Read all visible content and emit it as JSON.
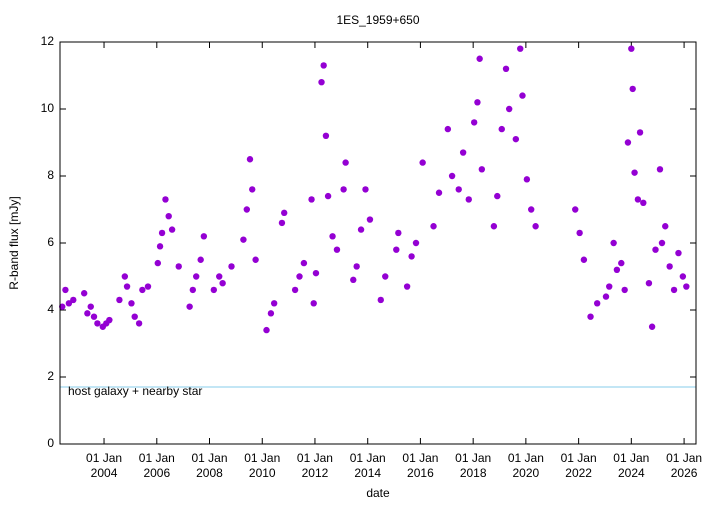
{
  "chart_data": {
    "type": "scatter",
    "title": "1ES_1959+650",
    "xlabel": "date",
    "ylabel": "R-band flux [mJy]",
    "xlim": [
      "2002-05-01",
      "2026-06-15"
    ],
    "ylim": [
      0,
      12
    ],
    "yticks": [
      0,
      2,
      4,
      6,
      8,
      10,
      12
    ],
    "xticks": [
      {
        "value": "2004-01-01",
        "label": [
          "01 Jan",
          "2004"
        ]
      },
      {
        "value": "2006-01-01",
        "label": [
          "01 Jan",
          "2006"
        ]
      },
      {
        "value": "2008-01-01",
        "label": [
          "01 Jan",
          "2008"
        ]
      },
      {
        "value": "2010-01-01",
        "label": [
          "01 Jan",
          "2010"
        ]
      },
      {
        "value": "2012-01-01",
        "label": [
          "01 Jan",
          "2012"
        ]
      },
      {
        "value": "2014-01-01",
        "label": [
          "01 Jan",
          "2014"
        ]
      },
      {
        "value": "2016-01-01",
        "label": [
          "01 Jan",
          "2016"
        ]
      },
      {
        "value": "2018-01-01",
        "label": [
          "01 Jan",
          "2018"
        ]
      },
      {
        "value": "2020-01-01",
        "label": [
          "01 Jan",
          "2020"
        ]
      },
      {
        "value": "2022-01-01",
        "label": [
          "01 Jan",
          "2022"
        ]
      },
      {
        "value": "2024-01-01",
        "label": [
          "01 Jan",
          "2024"
        ]
      },
      {
        "value": "2026-01-01",
        "label": [
          "01 Jan",
          "2026"
        ]
      }
    ],
    "reference_line": {
      "label": "host galaxy + nearby star",
      "value": 1.7,
      "color": "#87ceeb"
    },
    "series": [
      {
        "color": "#9400d3",
        "x": [
          "2002-06-01",
          "2002-07-15",
          "2002-09-01",
          "2002-11-01",
          "2003-04-01",
          "2003-05-15",
          "2003-07-01",
          "2003-08-15",
          "2003-10-01",
          "2003-12-15",
          "2004-02-01",
          "2004-03-15",
          "2004-08-01",
          "2004-10-15",
          "2004-11-15",
          "2005-01-15",
          "2005-03-01",
          "2005-05-01",
          "2005-06-15",
          "2005-09-01",
          "2006-01-15",
          "2006-02-15",
          "2006-03-15",
          "2006-05-01",
          "2006-06-15",
          "2006-08-01",
          "2006-11-01",
          "2007-04-01",
          "2007-05-15",
          "2007-07-01",
          "2007-09-01",
          "2007-10-15",
          "2008-03-01",
          "2008-05-15",
          "2008-07-01",
          "2008-11-01",
          "2009-04-15",
          "2009-06-01",
          "2009-07-15",
          "2009-08-15",
          "2009-10-01",
          "2010-03-01",
          "2010-05-01",
          "2010-06-15",
          "2010-10-01",
          "2010-11-01",
          "2011-04-01",
          "2011-06-01",
          "2011-08-01",
          "2011-11-15",
          "2011-12-15",
          "2012-01-15",
          "2012-04-01",
          "2012-05-01",
          "2012-06-01",
          "2012-07-01",
          "2012-09-01",
          "2012-11-01",
          "2013-02-01",
          "2013-03-01",
          "2013-06-15",
          "2013-08-01",
          "2013-10-01",
          "2013-12-01",
          "2014-02-01",
          "2014-07-01",
          "2014-09-01",
          "2015-02-01",
          "2015-03-01",
          "2015-07-01",
          "2015-09-01",
          "2015-11-01",
          "2016-02-01",
          "2016-07-01",
          "2016-09-15",
          "2017-01-15",
          "2017-03-15",
          "2017-06-15",
          "2017-08-15",
          "2017-11-01",
          "2018-01-15",
          "2018-03-01",
          "2018-04-01",
          "2018-05-01",
          "2018-10-15",
          "2018-12-01",
          "2019-02-01",
          "2019-04-01",
          "2019-05-15",
          "2019-08-15",
          "2019-10-15",
          "2019-11-15",
          "2020-01-15",
          "2020-03-15",
          "2020-05-15",
          "2021-11-15",
          "2022-01-15",
          "2022-03-15",
          "2022-06-15",
          "2022-09-15",
          "2023-01-15",
          "2023-03-01",
          "2023-05-01",
          "2023-06-15",
          "2023-08-15",
          "2023-10-01",
          "2023-11-15",
          "2024-01-01",
          "2024-01-20",
          "2024-02-15",
          "2024-04-01",
          "2024-05-01",
          "2024-06-15",
          "2024-09-01",
          "2024-10-15",
          "2024-12-01",
          "2025-02-01",
          "2025-03-01",
          "2025-04-15",
          "2025-06-15",
          "2025-08-15",
          "2025-10-15",
          "2025-12-15",
          "2026-02-01"
        ],
        "values": [
          4.1,
          4.6,
          4.2,
          4.3,
          4.5,
          3.9,
          4.1,
          3.8,
          3.6,
          3.5,
          3.6,
          3.7,
          4.3,
          5.0,
          4.7,
          4.2,
          3.8,
          3.6,
          4.6,
          4.7,
          5.4,
          5.9,
          6.3,
          7.3,
          6.8,
          6.4,
          5.3,
          4.1,
          4.6,
          5.0,
          5.5,
          6.2,
          4.6,
          5.0,
          4.8,
          5.3,
          6.1,
          7.0,
          8.5,
          7.6,
          5.5,
          3.4,
          3.9,
          4.2,
          6.6,
          6.9,
          4.6,
          5.0,
          5.4,
          7.3,
          4.2,
          5.1,
          10.8,
          11.3,
          9.2,
          7.4,
          6.2,
          5.8,
          7.6,
          8.4,
          4.9,
          5.3,
          6.4,
          7.6,
          6.7,
          4.3,
          5.0,
          5.8,
          6.3,
          4.7,
          5.6,
          6.0,
          8.4,
          6.5,
          7.5,
          9.4,
          8.0,
          7.6,
          8.7,
          7.3,
          9.6,
          10.2,
          11.5,
          8.2,
          6.5,
          7.4,
          9.4,
          11.2,
          10.0,
          9.1,
          11.8,
          10.4,
          7.9,
          7.0,
          6.5,
          7.0,
          6.3,
          5.5,
          3.8,
          4.2,
          4.4,
          4.7,
          6.0,
          5.2,
          5.4,
          4.6,
          9.0,
          11.8,
          10.6,
          8.1,
          7.3,
          9.3,
          7.2,
          4.8,
          3.5,
          5.8,
          8.2,
          6.0,
          6.5,
          5.3,
          4.6,
          5.7,
          5.0,
          4.7
        ]
      }
    ]
  }
}
